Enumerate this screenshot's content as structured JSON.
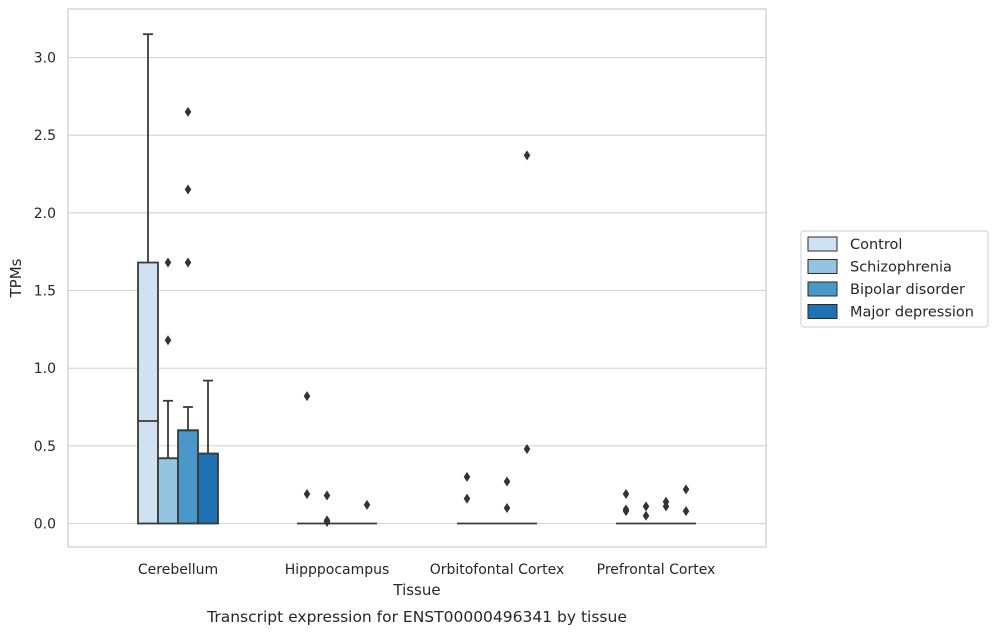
{
  "chart_data": {
    "type": "box",
    "xlabel": "Tissue",
    "ylabel": "TPMs",
    "caption": "Transcript expression for ENST00000496341 by tissue",
    "ylim": [
      -0.15,
      3.3
    ],
    "yticks": [
      "0.0",
      "0.5",
      "1.0",
      "1.5",
      "2.0",
      "2.5",
      "3.0"
    ],
    "grid": "horizontal",
    "legend_position": "right",
    "categories": [
      "Cerebellum",
      "Hipppocampus",
      "Orbitofontal Cortex",
      "Prefrontal Cortex"
    ],
    "series": [
      {
        "name": "Control",
        "color": "#d0e1f2",
        "boxes": [
          {
            "q1": 0,
            "median": 0.66,
            "q3": 1.68,
            "whisker_low": 0,
            "whisker_high": 3.15,
            "outliers": []
          },
          {
            "q1": 0,
            "median": 0,
            "q3": 0,
            "whisker_low": 0,
            "whisker_high": 0,
            "outliers": [
              0.82,
              0.19
            ]
          },
          {
            "q1": 0,
            "median": 0,
            "q3": 0,
            "whisker_low": 0,
            "whisker_high": 0,
            "outliers": [
              0.3,
              0.16
            ]
          },
          {
            "q1": 0,
            "median": 0,
            "q3": 0,
            "whisker_low": 0,
            "whisker_high": 0,
            "outliers": [
              0.19,
              0.09,
              0.08
            ]
          }
        ]
      },
      {
        "name": "Schizophrenia",
        "color": "#94c4df",
        "boxes": [
          {
            "q1": 0,
            "median": 0.42,
            "q3": 0.42,
            "whisker_low": 0,
            "whisker_high": 0.79,
            "outliers": [
              1.68,
              1.18
            ]
          },
          {
            "q1": 0,
            "median": 0,
            "q3": 0,
            "whisker_low": 0,
            "whisker_high": 0,
            "outliers": [
              0.18,
              0.02,
              0.01
            ]
          },
          {
            "q1": 0,
            "median": 0,
            "q3": 0,
            "whisker_low": 0,
            "whisker_high": 0,
            "outliers": []
          },
          {
            "q1": 0,
            "median": 0,
            "q3": 0,
            "whisker_low": 0,
            "whisker_high": 0,
            "outliers": [
              0.11,
              0.05
            ]
          }
        ]
      },
      {
        "name": "Bipolar disorder",
        "color": "#4a98c9",
        "boxes": [
          {
            "q1": 0,
            "median": 0.6,
            "q3": 0.6,
            "whisker_low": 0,
            "whisker_high": 0.75,
            "outliers": [
              2.65,
              2.15,
              1.68
            ]
          },
          {
            "q1": 0,
            "median": 0,
            "q3": 0,
            "whisker_low": 0,
            "whisker_high": 0,
            "outliers": []
          },
          {
            "q1": 0,
            "median": 0,
            "q3": 0,
            "whisker_low": 0,
            "whisker_high": 0,
            "outliers": [
              0.27,
              0.1
            ]
          },
          {
            "q1": 0,
            "median": 0,
            "q3": 0,
            "whisker_low": 0,
            "whisker_high": 0,
            "outliers": [
              0.14,
              0.11
            ]
          }
        ]
      },
      {
        "name": "Major depression",
        "color": "#2070b4",
        "boxes": [
          {
            "q1": 0,
            "median": 0.45,
            "q3": 0.45,
            "whisker_low": 0,
            "whisker_high": 0.92,
            "outliers": []
          },
          {
            "q1": 0,
            "median": 0,
            "q3": 0,
            "whisker_low": 0,
            "whisker_high": 0,
            "outliers": [
              0.12
            ]
          },
          {
            "q1": 0,
            "median": 0,
            "q3": 0,
            "whisker_low": 0,
            "whisker_high": 0,
            "outliers": [
              2.37,
              0.48
            ]
          },
          {
            "q1": 0,
            "median": 0,
            "q3": 0,
            "whisker_low": 0,
            "whisker_high": 0,
            "outliers": [
              0.22,
              0.08
            ]
          }
        ]
      }
    ]
  }
}
